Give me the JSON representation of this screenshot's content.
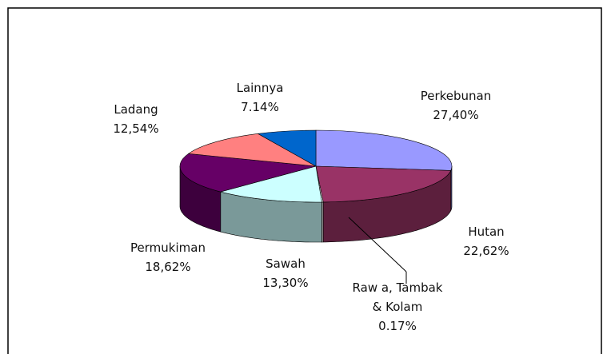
{
  "chart_data": {
    "type": "pie",
    "categories": [
      "Perkebunan",
      "Hutan",
      "Raw a, Tambak & Kolam",
      "Sawah",
      "Permukiman",
      "Ladang",
      "Lainnya"
    ],
    "values": [
      27.4,
      22.62,
      0.17,
      13.3,
      18.62,
      12.54,
      7.14
    ],
    "value_labels": [
      "27,40%",
      "22,62%",
      "0.17%",
      "13,30%",
      "18,62%",
      "12,54%",
      "7.14%"
    ],
    "colors": [
      "#9999ff",
      "#993366",
      "#ffffff",
      "#ccffff",
      "#660066",
      "#ff8080",
      "#0066cc"
    ]
  }
}
